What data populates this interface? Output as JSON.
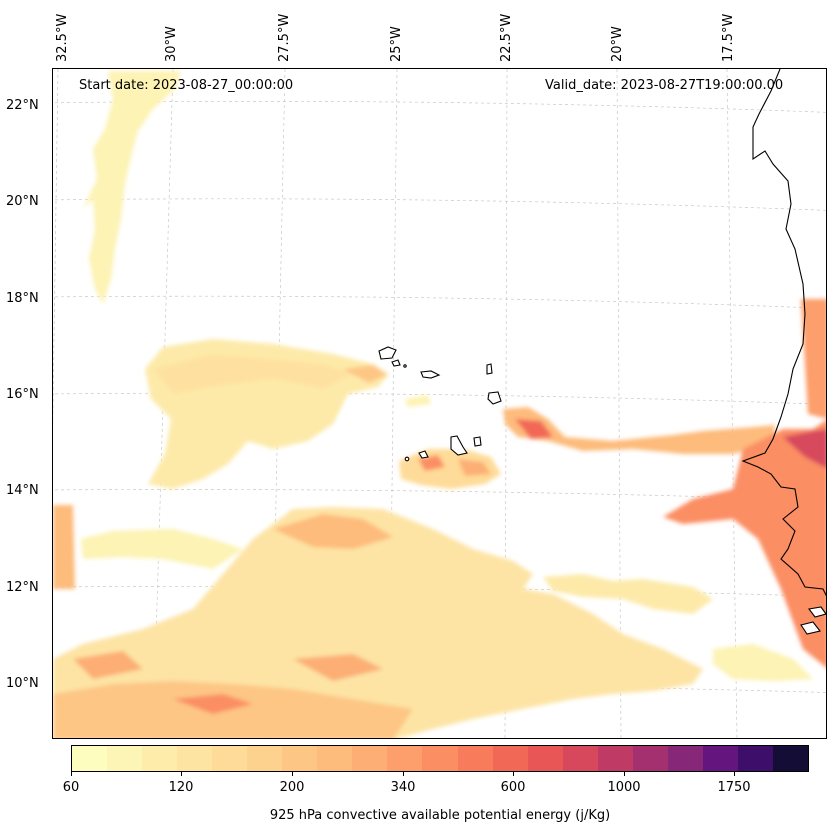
{
  "map": {
    "lon_labels": [
      "32.5°W",
      "30°W",
      "27.5°W",
      "25°W",
      "22.5°W",
      "20°W",
      "17.5°W"
    ],
    "lat_labels": [
      "22°N",
      "20°N",
      "18°N",
      "16°N",
      "14°N",
      "12°N",
      "10°N"
    ],
    "start_date": "Start date: 2023-08-27_00:00:00",
    "valid_date": "Valid_date: 2023-08-27T19:00:00.00",
    "gridlines": true,
    "colormap": "magma_r"
  },
  "colorbar": {
    "label": "925 hPa convective available potential energy (j/Kg)",
    "tick_labels": [
      "60",
      "120",
      "200",
      "340",
      "600",
      "1000",
      "1750"
    ],
    "colors": [
      "#fcfdbf",
      "#fdf5b6",
      "#feecab",
      "#fee4a2",
      "#fedb98",
      "#fdd18e",
      "#fdc685",
      "#fdbb7c",
      "#fcae74",
      "#fc9f6c",
      "#fb8e63",
      "#f87b5c",
      "#f26857",
      "#e85756",
      "#d7485d",
      "#c03a66",
      "#a5306f",
      "#862778",
      "#65157e",
      "#3d0f6b",
      "#140e36"
    ]
  }
}
